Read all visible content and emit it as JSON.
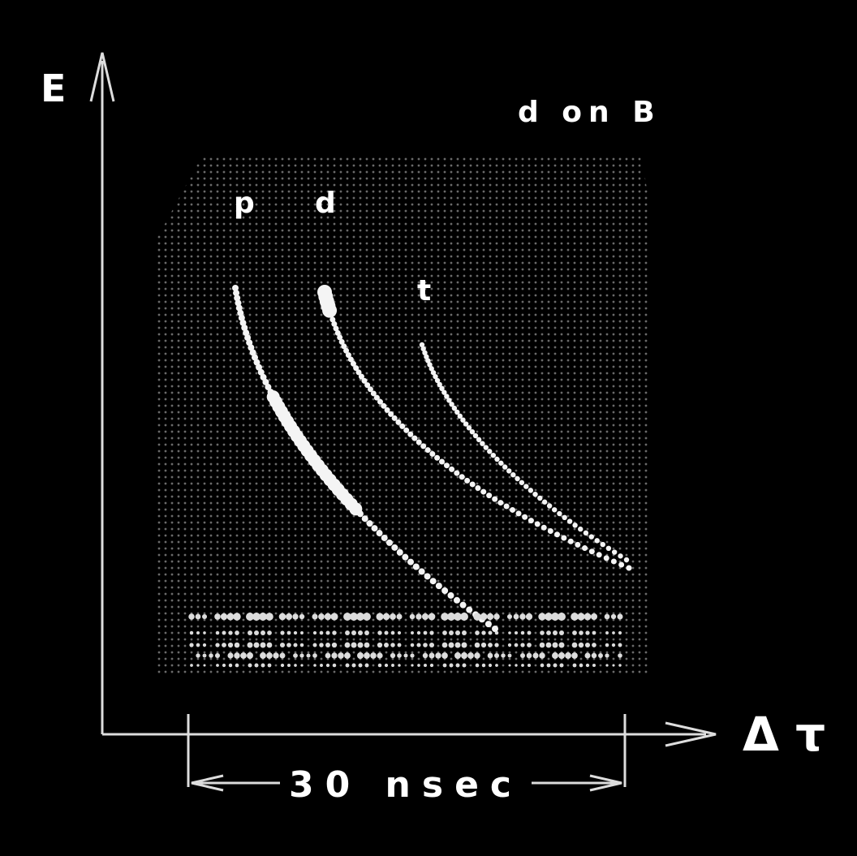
{
  "y_axis_label": "E",
  "x_axis_label": "Δ τ",
  "reaction_label": "d on B",
  "particle_labels": [
    "p",
    "d",
    "t"
  ],
  "scale_bar_label": "30 nsec"
}
